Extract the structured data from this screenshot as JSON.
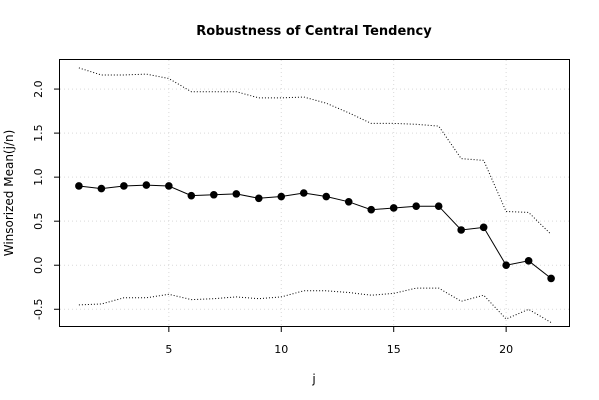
{
  "chart_data": {
    "type": "line",
    "title": "Robustness of Central Tendency",
    "xlabel": "j",
    "ylabel": "Winsorized Mean(j/n)",
    "xlim": [
      0.16,
      22.84
    ],
    "ylim": [
      -0.69,
      2.33
    ],
    "xticks": [
      5,
      10,
      15,
      20
    ],
    "yticks": [
      -0.5,
      0.0,
      0.5,
      1.0,
      1.5,
      2.0
    ],
    "xtick_labels": [
      "5",
      "10",
      "15",
      "20"
    ],
    "ytick_labels": [
      "-0.5",
      "0.0",
      "0.5",
      "1.0",
      "1.5",
      "2.0"
    ],
    "grid": true,
    "x": [
      1,
      2,
      3,
      4,
      5,
      6,
      7,
      8,
      9,
      10,
      11,
      12,
      13,
      14,
      15,
      16,
      17,
      18,
      19,
      20,
      21,
      22
    ],
    "series": [
      {
        "role": "mean",
        "style": "solid line with filled circles",
        "color": "#000000",
        "values": [
          0.9,
          0.87,
          0.9,
          0.91,
          0.9,
          0.79,
          0.8,
          0.81,
          0.76,
          0.78,
          0.82,
          0.78,
          0.72,
          0.63,
          0.65,
          0.67,
          0.67,
          0.4,
          0.43,
          0.0,
          0.05,
          -0.15
        ]
      },
      {
        "role": "upper-bound",
        "style": "dotted line",
        "color": "#000000",
        "values": [
          2.24,
          2.16,
          2.16,
          2.17,
          2.12,
          1.97,
          1.97,
          1.97,
          1.9,
          1.9,
          1.91,
          1.84,
          1.73,
          1.61,
          1.61,
          1.6,
          1.58,
          1.21,
          1.19,
          0.61,
          0.6,
          0.35
        ]
      },
      {
        "role": "lower-bound",
        "style": "dotted line",
        "color": "#000000",
        "values": [
          -0.45,
          -0.44,
          -0.37,
          -0.37,
          -0.33,
          -0.39,
          -0.38,
          -0.36,
          -0.38,
          -0.36,
          -0.29,
          -0.29,
          -0.31,
          -0.34,
          -0.32,
          -0.26,
          -0.26,
          -0.41,
          -0.34,
          -0.61,
          -0.5,
          -0.65
        ]
      }
    ]
  }
}
